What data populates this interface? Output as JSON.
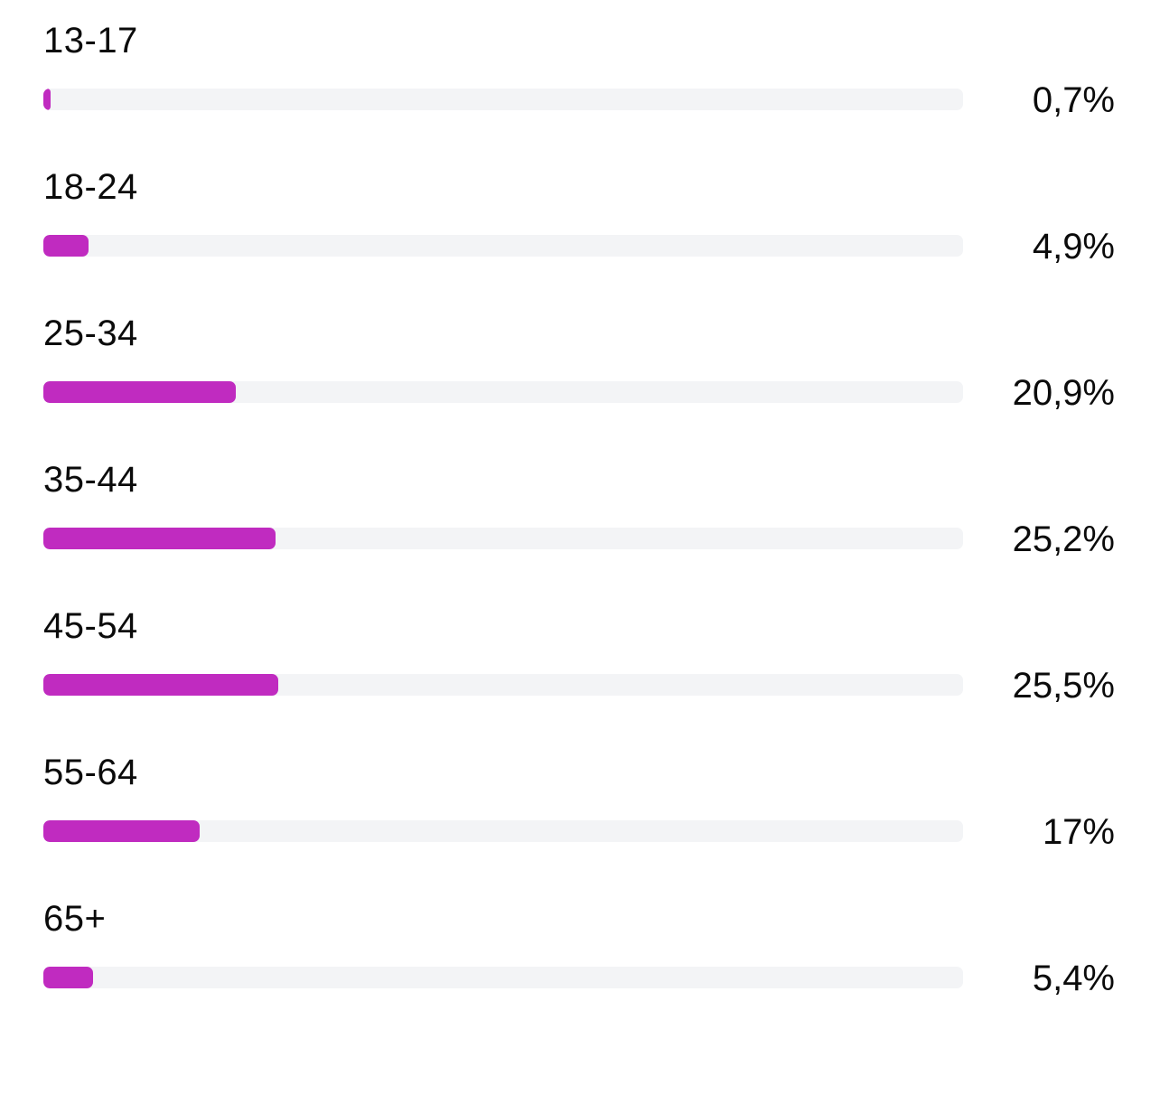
{
  "chart_data": {
    "type": "bar",
    "orientation": "horizontal",
    "categories": [
      "13-17",
      "18-24",
      "25-34",
      "35-44",
      "45-54",
      "55-64",
      "65+"
    ],
    "values": [
      0.7,
      4.9,
      20.9,
      25.2,
      25.5,
      17,
      5.4
    ],
    "value_labels": [
      "0,7%",
      "4,9%",
      "20,9%",
      "25,2%",
      "25,5%",
      "17%",
      "5,4%"
    ],
    "unit": "%",
    "xlim": [
      0,
      100
    ],
    "grid": false,
    "legend": "none",
    "colors": {
      "bar": "#c02bc0",
      "track": "#f3f4f6",
      "text": "#0b0b0b"
    }
  }
}
